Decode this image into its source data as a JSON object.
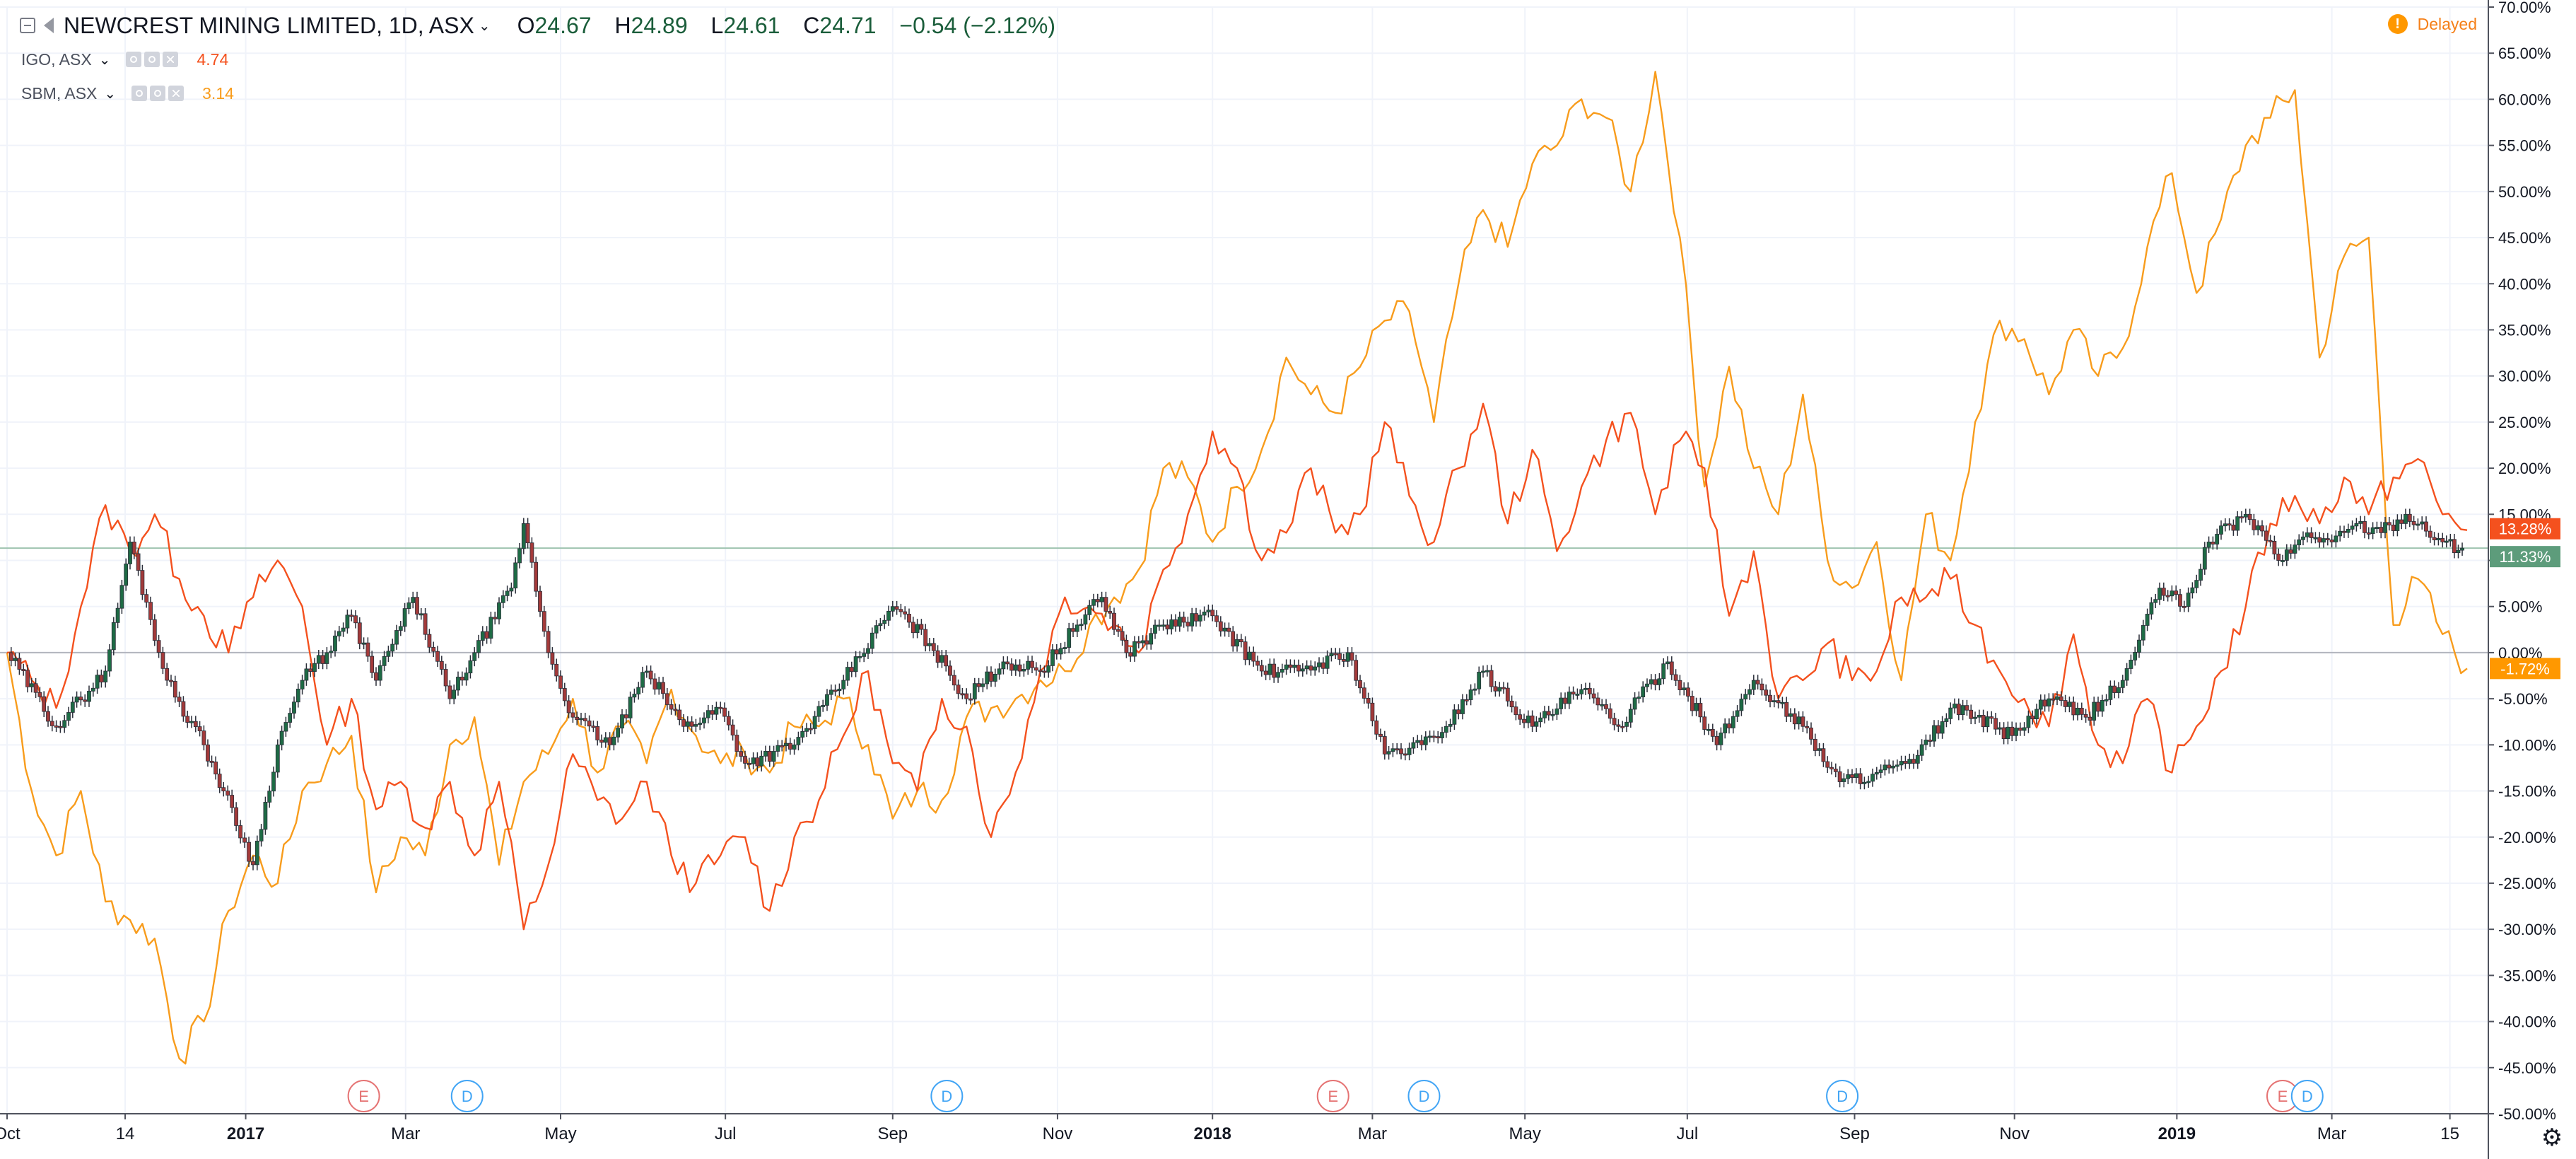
{
  "legend": {
    "main": {
      "title": "NEWCREST MINING LIMITED, 1D, ASX",
      "open_label": "O",
      "open": "24.67",
      "high_label": "H",
      "high": "24.89",
      "low_label": "L",
      "low": "24.61",
      "close_label": "C",
      "close": "24.71",
      "change": "−0.54 (−2.12%)"
    },
    "compare": [
      {
        "name": "IGO, ASX",
        "value": "4.74",
        "color": "#f4511e"
      },
      {
        "name": "SBM, ASX",
        "value": "3.14",
        "color": "#f89c1c"
      }
    ]
  },
  "status": {
    "delayed_label": "Delayed",
    "delayed_icon": "!"
  },
  "settings_icon": "gear-icon",
  "colors": {
    "up": "#26a69a",
    "down": "#ef5350",
    "candle_up": "#1e6b45",
    "candle_down": "#a33a3a",
    "igo": "#f4511e",
    "sbm": "#f89c1c",
    "nct_badge": "#5d9c7b"
  },
  "chart_data": {
    "type": "line",
    "scale": "percent",
    "ylim": [
      -50,
      70
    ],
    "y_ticks": [
      "70.00%",
      "65.00%",
      "60.00%",
      "55.00%",
      "50.00%",
      "45.00%",
      "40.00%",
      "35.00%",
      "30.00%",
      "25.00%",
      "20.00%",
      "15.00%",
      "10.00%",
      "5.00%",
      "0.00%",
      "-5.00%",
      "-10.00%",
      "-15.00%",
      "-20.00%",
      "-25.00%",
      "-30.00%",
      "-35.00%",
      "-40.00%",
      "-45.00%",
      "-50.00%"
    ],
    "x_ticks": [
      {
        "label": "Oct",
        "t": 0.0
      },
      {
        "label": "14",
        "t": 0.048
      },
      {
        "label": "2017",
        "t": 0.097
      },
      {
        "label": "Mar",
        "t": 0.162
      },
      {
        "label": "May",
        "t": 0.225
      },
      {
        "label": "Jul",
        "t": 0.292
      },
      {
        "label": "Sep",
        "t": 0.36
      },
      {
        "label": "Nov",
        "t": 0.427
      },
      {
        "label": "2018",
        "t": 0.49
      },
      {
        "label": "Mar",
        "t": 0.555
      },
      {
        "label": "May",
        "t": 0.617
      },
      {
        "label": "Jul",
        "t": 0.683
      },
      {
        "label": "Sep",
        "t": 0.751
      },
      {
        "label": "Nov",
        "t": 0.816
      },
      {
        "label": "2019",
        "t": 0.882
      },
      {
        "label": "Mar",
        "t": 0.945
      },
      {
        "label": "15",
        "t": 0.993
      }
    ],
    "events": [
      {
        "type": "E",
        "t": 0.145
      },
      {
        "type": "D",
        "t": 0.187
      },
      {
        "type": "D",
        "t": 0.382
      },
      {
        "type": "E",
        "t": 0.539
      },
      {
        "type": "D",
        "t": 0.576
      },
      {
        "type": "D",
        "t": 0.746
      },
      {
        "type": "E",
        "t": 0.925
      },
      {
        "type": "D",
        "t": 0.935
      }
    ],
    "last_value_badges": [
      {
        "label": "13.28%",
        "value": 13.28,
        "series": "IGO, ASX"
      },
      {
        "label": "11.33%",
        "value": 11.33,
        "series": "NEWCREST MINING LIMITED"
      },
      {
        "label": "-1.72%",
        "value": -1.72,
        "series": "SBM, ASX"
      }
    ],
    "series": [
      {
        "name": "NEWCREST MINING LIMITED",
        "kind": "candles",
        "t": [
          0.0,
          0.02,
          0.04,
          0.05,
          0.065,
          0.08,
          0.088,
          0.1,
          0.11,
          0.12,
          0.13,
          0.14,
          0.15,
          0.165,
          0.18,
          0.19,
          0.205,
          0.21,
          0.22,
          0.23,
          0.245,
          0.26,
          0.275,
          0.29,
          0.3,
          0.32,
          0.34,
          0.36,
          0.375,
          0.39,
          0.405,
          0.42,
          0.435,
          0.445,
          0.455,
          0.47,
          0.49,
          0.51,
          0.525,
          0.545,
          0.56,
          0.575,
          0.585,
          0.6,
          0.62,
          0.64,
          0.655,
          0.675,
          0.695,
          0.71,
          0.73,
          0.745,
          0.76,
          0.775,
          0.79,
          0.8,
          0.815,
          0.83,
          0.845,
          0.86,
          0.875,
          0.885,
          0.895,
          0.91,
          0.925,
          0.935,
          0.945,
          0.955,
          0.965,
          0.975,
          0.99,
          0.998
        ],
        "values": [
          0,
          -8,
          -2,
          12,
          -3,
          -10,
          -15,
          -23,
          -10,
          -3,
          0,
          4,
          -3,
          6,
          -5,
          0,
          7,
          14,
          0,
          -7,
          -10,
          -2,
          -8,
          -6,
          -12,
          -10,
          -3,
          5,
          1,
          -5,
          -1,
          -2,
          3,
          6,
          0,
          3,
          4,
          -2,
          -2,
          0,
          -11,
          -10,
          -8,
          -2,
          -8,
          -4,
          -8,
          -1,
          -10,
          -3,
          -8,
          -14,
          -13,
          -12,
          -6,
          -7,
          -9,
          -5,
          -7,
          -3,
          7,
          5,
          12,
          15,
          10,
          13,
          12,
          14,
          13,
          15,
          12,
          11.33
        ]
      },
      {
        "name": "IGO, ASX",
        "kind": "line",
        "t": [
          0.0,
          0.01,
          0.02,
          0.03,
          0.04,
          0.05,
          0.06,
          0.07,
          0.08,
          0.09,
          0.1,
          0.11,
          0.12,
          0.13,
          0.14,
          0.15,
          0.16,
          0.17,
          0.18,
          0.19,
          0.2,
          0.21,
          0.22,
          0.23,
          0.24,
          0.25,
          0.26,
          0.27,
          0.28,
          0.29,
          0.3,
          0.31,
          0.32,
          0.33,
          0.34,
          0.35,
          0.36,
          0.37,
          0.38,
          0.39,
          0.4,
          0.41,
          0.42,
          0.43,
          0.44,
          0.45,
          0.46,
          0.47,
          0.48,
          0.49,
          0.5,
          0.51,
          0.52,
          0.53,
          0.54,
          0.55,
          0.56,
          0.57,
          0.58,
          0.59,
          0.6,
          0.61,
          0.62,
          0.63,
          0.64,
          0.65,
          0.66,
          0.67,
          0.68,
          0.69,
          0.7,
          0.71,
          0.72,
          0.73,
          0.74,
          0.75,
          0.76,
          0.77,
          0.78,
          0.79,
          0.8,
          0.81,
          0.82,
          0.83,
          0.84,
          0.85,
          0.86,
          0.87,
          0.88,
          0.89,
          0.9,
          0.91,
          0.92,
          0.93,
          0.94,
          0.95,
          0.96,
          0.97,
          0.98,
          0.99,
          1.0
        ],
        "values": [
          0,
          -3,
          -6,
          5,
          16,
          11,
          15,
          8,
          4,
          0,
          6,
          10,
          5,
          -10,
          -5,
          -17,
          -14,
          -19,
          -14,
          -22,
          -14,
          -30,
          -23,
          -11,
          -16,
          -18,
          -14,
          -22,
          -25,
          -22,
          -20,
          -28,
          -20,
          -16,
          -9,
          -2,
          -12,
          -15,
          -5,
          -8,
          -20,
          -13,
          -2,
          6,
          5,
          3,
          0,
          9,
          15,
          24,
          20,
          10,
          13,
          20,
          13,
          15,
          25,
          17,
          12,
          20,
          27,
          14,
          22,
          11,
          18,
          23,
          26,
          15,
          23,
          20,
          4,
          11,
          -5,
          -3,
          1,
          -3,
          -2,
          6,
          6,
          8,
          3,
          -2,
          -5,
          -8,
          2,
          -10,
          -12,
          -5,
          -13,
          -8,
          -2,
          5,
          14,
          17,
          14,
          19,
          15,
          19,
          21,
          15,
          13.28
        ]
      },
      {
        "name": "SBM, ASX",
        "kind": "line",
        "t": [
          0.0,
          0.01,
          0.02,
          0.03,
          0.04,
          0.05,
          0.06,
          0.07,
          0.08,
          0.09,
          0.1,
          0.11,
          0.12,
          0.13,
          0.14,
          0.15,
          0.16,
          0.17,
          0.18,
          0.19,
          0.2,
          0.21,
          0.22,
          0.23,
          0.24,
          0.25,
          0.26,
          0.27,
          0.28,
          0.29,
          0.3,
          0.31,
          0.32,
          0.33,
          0.34,
          0.35,
          0.36,
          0.37,
          0.38,
          0.39,
          0.4,
          0.41,
          0.42,
          0.43,
          0.44,
          0.45,
          0.46,
          0.47,
          0.48,
          0.49,
          0.5,
          0.51,
          0.52,
          0.53,
          0.54,
          0.55,
          0.56,
          0.57,
          0.58,
          0.59,
          0.6,
          0.61,
          0.62,
          0.63,
          0.64,
          0.65,
          0.66,
          0.67,
          0.68,
          0.69,
          0.7,
          0.71,
          0.72,
          0.73,
          0.74,
          0.75,
          0.76,
          0.77,
          0.78,
          0.79,
          0.8,
          0.81,
          0.82,
          0.83,
          0.84,
          0.85,
          0.86,
          0.87,
          0.88,
          0.89,
          0.9,
          0.91,
          0.92,
          0.93,
          0.94,
          0.95,
          0.96,
          0.97,
          0.98,
          0.99,
          1.0
        ],
        "values": [
          0,
          -15,
          -22,
          -15,
          -27,
          -29,
          -31,
          -44,
          -40,
          -28,
          -22,
          -25,
          -15,
          -12,
          -9,
          -26,
          -20,
          -22,
          -10,
          -7,
          -23,
          -14,
          -11,
          -5,
          -13,
          -8,
          -12,
          -4,
          -9,
          -12,
          -11,
          -13,
          -8,
          -8,
          -5,
          -10,
          -18,
          -15,
          -16,
          -7,
          -6,
          -5,
          -3,
          -2,
          3,
          6,
          9,
          20,
          19,
          12,
          18,
          22,
          32,
          28,
          26,
          31,
          36,
          37,
          25,
          40,
          48,
          44,
          53,
          55,
          60,
          58,
          50,
          63,
          45,
          18,
          31,
          20,
          15,
          28,
          10,
          7,
          12,
          -3,
          15,
          10,
          25,
          36,
          34,
          28,
          35,
          30,
          33,
          44,
          52,
          39,
          47,
          55,
          58,
          61,
          32,
          43,
          45,
          3,
          8,
          2,
          -1.72
        ]
      }
    ]
  }
}
